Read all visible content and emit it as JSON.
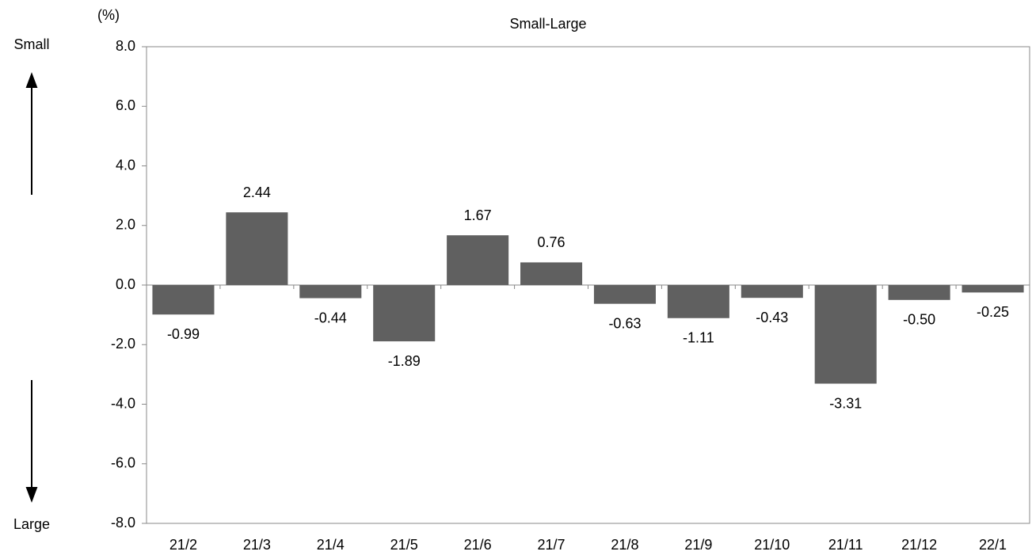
{
  "chart_data": {
    "type": "bar",
    "title": "Small-Large",
    "annotations": {
      "unit": "(%)",
      "top": "Small",
      "bottom": "Large"
    },
    "categories": [
      "21/2",
      "21/3",
      "21/4",
      "21/5",
      "21/6",
      "21/7",
      "21/8",
      "21/9",
      "21/10",
      "21/11",
      "21/12",
      "22/1"
    ],
    "values": [
      -0.99,
      2.44,
      -0.44,
      -1.89,
      1.67,
      0.76,
      -0.63,
      -1.11,
      -0.43,
      -3.31,
      -0.5,
      -0.25
    ],
    "value_labels": [
      "-0.99",
      "2.44",
      "-0.44",
      "-1.89",
      "1.67",
      "0.76",
      "-0.63",
      "-1.11",
      "-0.43",
      "-3.31",
      "-0.50",
      "-0.25"
    ],
    "color": "#606060",
    "ylim": [
      -8,
      8
    ],
    "yticks": [
      {
        "value": -8,
        "label": "-8.0"
      },
      {
        "value": -6,
        "label": "-6.0"
      },
      {
        "value": -4,
        "label": "-4.0"
      },
      {
        "value": -2,
        "label": "-2.0"
      },
      {
        "value": 0,
        "label": "0.0"
      },
      {
        "value": 2,
        "label": "2.0"
      },
      {
        "value": 4,
        "label": "4.0"
      },
      {
        "value": 6,
        "label": "6.0"
      },
      {
        "value": 8,
        "label": "8.0"
      }
    ],
    "grid": false
  }
}
